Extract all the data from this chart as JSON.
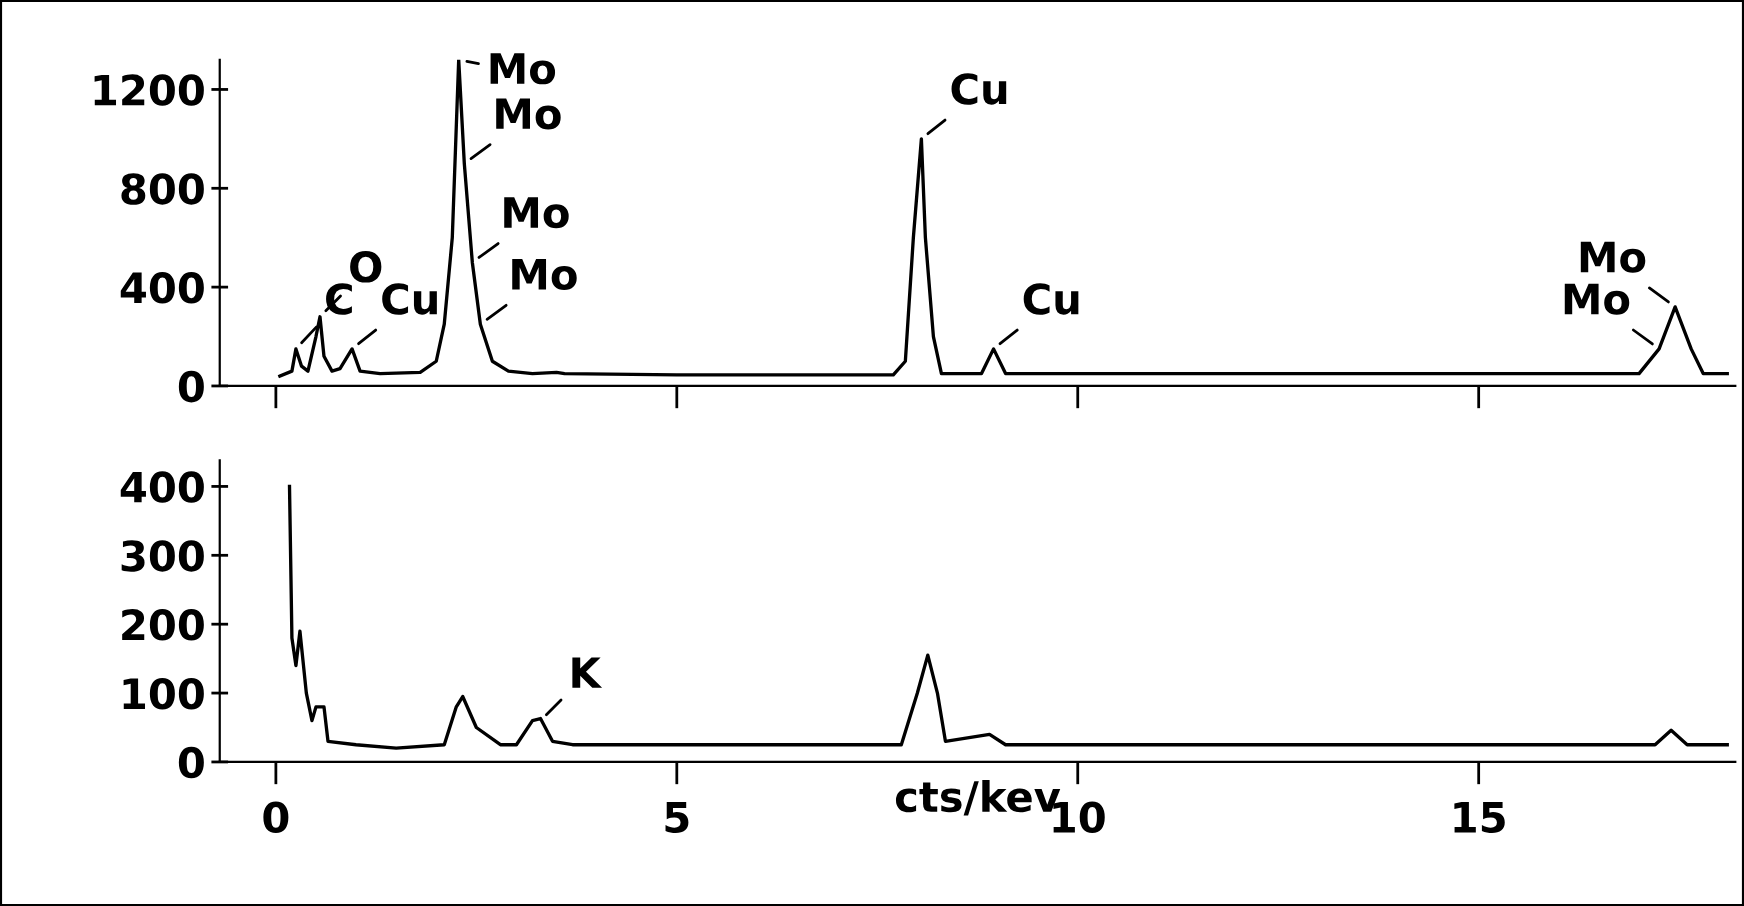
{
  "chart_data": [
    {
      "type": "line",
      "x": [
        0.05,
        0.2,
        0.25,
        0.32,
        0.4,
        0.5,
        0.55,
        0.6,
        0.7,
        0.8,
        0.95,
        1.05,
        1.3,
        1.8,
        2.0,
        2.1,
        2.2,
        2.28,
        2.35,
        2.45,
        2.55,
        2.7,
        2.9,
        3.2,
        3.5,
        3.6,
        5,
        7.7,
        7.85,
        7.95,
        8.05,
        8.1,
        8.2,
        8.3,
        8.8,
        8.95,
        9.1,
        17.0,
        17.25,
        17.45,
        17.65,
        17.8,
        18.1
      ],
      "series": [
        {
          "color": "#000000",
          "values": [
            40,
            60,
            150,
            80,
            60,
            200,
            280,
            120,
            60,
            70,
            150,
            60,
            50,
            55,
            100,
            250,
            600,
            1320,
            900,
            500,
            250,
            100,
            60,
            50,
            55,
            50,
            45,
            45,
            100,
            600,
            1000,
            600,
            200,
            50,
            50,
            150,
            50,
            50,
            150,
            320,
            150,
            50,
            50
          ]
        }
      ],
      "xlim": [
        -0.7,
        18.2
      ],
      "xticks": [
        {
          "value": 0,
          "label": null
        },
        {
          "value": 5,
          "label": null
        },
        {
          "value": 10,
          "label": null
        },
        {
          "value": 15,
          "label": null
        }
      ],
      "ylim": [
        0,
        1320
      ],
      "yticks": [
        0,
        400,
        800,
        1200
      ],
      "tick_labels": "y",
      "grid": false,
      "annotations": [
        {
          "text": "C",
          "x": 0.25,
          "y": 150
        },
        {
          "text": "O",
          "x": 0.55,
          "y": 280
        },
        {
          "text": "Cu",
          "x": 0.95,
          "y": 150
        },
        {
          "text": "Mo",
          "x": 2.28,
          "y": 1320
        },
        {
          "text": "Mo",
          "x": 2.35,
          "y": 900
        },
        {
          "text": "Mo",
          "x": 2.45,
          "y": 500
        },
        {
          "text": "Mo",
          "x": 2.55,
          "y": 250
        },
        {
          "text": "Cu",
          "x": 8.05,
          "y": 1000
        },
        {
          "text": "Cu",
          "x": 8.95,
          "y": 150
        },
        {
          "text": "Mo",
          "x": 17.45,
          "y": 320
        },
        {
          "text": "Mo",
          "x": 17.25,
          "y": 150
        }
      ]
    },
    {
      "type": "line",
      "x": [
        0.17,
        0.2,
        0.25,
        0.3,
        0.38,
        0.45,
        0.5,
        0.6,
        0.65,
        1,
        1.5,
        2.1,
        2.25,
        2.33,
        2.5,
        2.8,
        3.0,
        3.2,
        3.3,
        3.45,
        3.7,
        7.8,
        8.0,
        8.13,
        8.25,
        8.35,
        8.9,
        9.1,
        17.2,
        17.4,
        17.6,
        18.1
      ],
      "series": [
        {
          "color": "#000000",
          "values": [
            400,
            180,
            140,
            190,
            100,
            60,
            80,
            80,
            30,
            25,
            20,
            25,
            80,
            95,
            50,
            25,
            25,
            60,
            63,
            30,
            25,
            25,
            100,
            155,
            100,
            30,
            40,
            25,
            25,
            46,
            25,
            25
          ]
        }
      ],
      "xlim": [
        -0.7,
        18.2
      ],
      "xticks": [
        0,
        5,
        10,
        15
      ],
      "ylim": [
        0,
        438
      ],
      "yticks": [
        0,
        100,
        200,
        300,
        400
      ],
      "xlabel": "cts/kev",
      "grid": false,
      "annotations": [
        {
          "text": "K",
          "x": 3.3,
          "y": 60
        }
      ]
    }
  ]
}
